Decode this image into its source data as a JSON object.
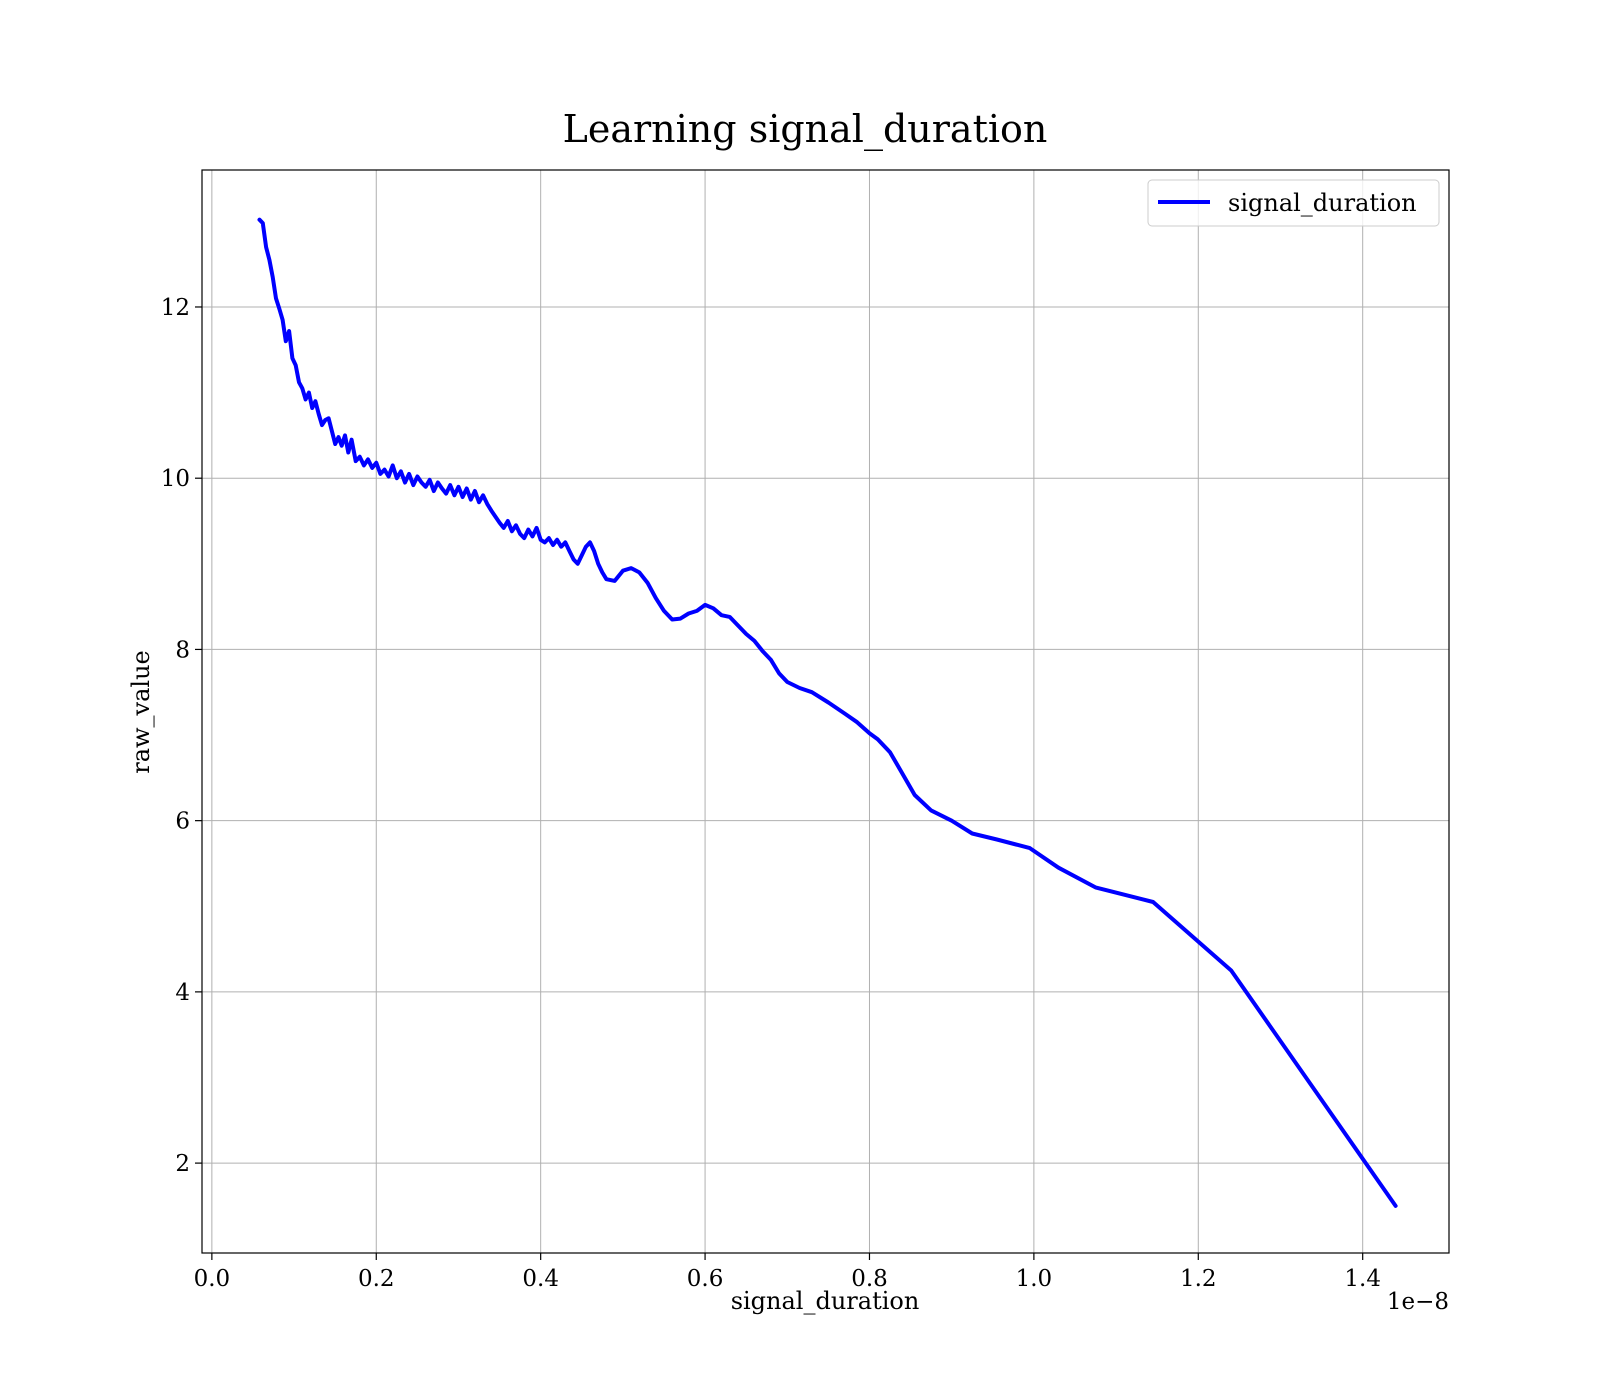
{
  "chart_data": {
    "type": "line",
    "title": "Learning signal_duration",
    "xlabel": "signal_duration",
    "ylabel": "raw_value",
    "x_offset_text": "1e−8",
    "xlim": [
      -0.012,
      1.505
    ],
    "ylim": [
      0.95,
      13.6
    ],
    "x_ticks": [
      0.0,
      0.2,
      0.4,
      0.6,
      0.8,
      1.0,
      1.2,
      1.4
    ],
    "x_tick_labels": [
      "0.0",
      "0.2",
      "0.4",
      "0.6",
      "0.8",
      "1.0",
      "1.2",
      "1.4"
    ],
    "y_ticks": [
      2,
      4,
      6,
      8,
      10,
      12
    ],
    "y_tick_labels": [
      "2",
      "4",
      "6",
      "8",
      "10",
      "12"
    ],
    "grid": true,
    "legend": {
      "position": "top-right",
      "entries": [
        "signal_duration"
      ]
    },
    "colors": {
      "signal_duration": "#0000ff"
    },
    "series": [
      {
        "name": "signal_duration",
        "x": [
          0.058,
          0.062,
          0.066,
          0.07,
          0.074,
          0.078,
          0.082,
          0.086,
          0.09,
          0.094,
          0.098,
          0.102,
          0.106,
          0.11,
          0.114,
          0.118,
          0.122,
          0.126,
          0.13,
          0.134,
          0.138,
          0.142,
          0.146,
          0.15,
          0.154,
          0.158,
          0.162,
          0.166,
          0.17,
          0.175,
          0.18,
          0.185,
          0.19,
          0.195,
          0.2,
          0.205,
          0.21,
          0.215,
          0.22,
          0.225,
          0.23,
          0.235,
          0.24,
          0.245,
          0.25,
          0.255,
          0.26,
          0.265,
          0.27,
          0.275,
          0.28,
          0.285,
          0.29,
          0.295,
          0.3,
          0.305,
          0.31,
          0.315,
          0.32,
          0.325,
          0.33,
          0.335,
          0.34,
          0.345,
          0.35,
          0.355,
          0.36,
          0.365,
          0.37,
          0.375,
          0.38,
          0.385,
          0.39,
          0.395,
          0.4,
          0.405,
          0.41,
          0.415,
          0.42,
          0.425,
          0.43,
          0.435,
          0.44,
          0.445,
          0.45,
          0.455,
          0.46,
          0.465,
          0.47,
          0.475,
          0.48,
          0.49,
          0.5,
          0.51,
          0.52,
          0.53,
          0.54,
          0.55,
          0.56,
          0.57,
          0.58,
          0.59,
          0.6,
          0.61,
          0.62,
          0.63,
          0.64,
          0.65,
          0.66,
          0.67,
          0.68,
          0.69,
          0.7,
          0.715,
          0.73,
          0.75,
          0.77,
          0.785,
          0.8,
          0.81,
          0.825,
          0.84,
          0.855,
          0.875,
          0.9,
          0.925,
          0.955,
          0.995,
          1.03,
          1.075,
          1.145,
          1.24,
          1.44
        ],
        "y": [
          13.02,
          12.98,
          12.7,
          12.55,
          12.35,
          12.1,
          11.98,
          11.85,
          11.6,
          11.72,
          11.4,
          11.32,
          11.12,
          11.05,
          10.92,
          11.0,
          10.82,
          10.9,
          10.75,
          10.62,
          10.68,
          10.7,
          10.55,
          10.4,
          10.48,
          10.38,
          10.5,
          10.3,
          10.45,
          10.2,
          10.25,
          10.15,
          10.22,
          10.12,
          10.18,
          10.05,
          10.1,
          10.02,
          10.15,
          10.0,
          10.08,
          9.95,
          10.05,
          9.92,
          10.02,
          9.95,
          9.9,
          9.98,
          9.85,
          9.95,
          9.88,
          9.82,
          9.92,
          9.8,
          9.9,
          9.78,
          9.88,
          9.75,
          9.85,
          9.72,
          9.8,
          9.7,
          9.62,
          9.55,
          9.48,
          9.42,
          9.5,
          9.38,
          9.45,
          9.35,
          9.3,
          9.4,
          9.32,
          9.42,
          9.28,
          9.25,
          9.3,
          9.22,
          9.28,
          9.2,
          9.25,
          9.15,
          9.05,
          9.0,
          9.1,
          9.2,
          9.25,
          9.15,
          9.0,
          8.9,
          8.82,
          8.8,
          8.92,
          8.95,
          8.9,
          8.78,
          8.6,
          8.45,
          8.35,
          8.36,
          8.42,
          8.45,
          8.52,
          8.48,
          8.4,
          8.38,
          8.28,
          8.18,
          8.1,
          7.98,
          7.88,
          7.72,
          7.62,
          7.55,
          7.5,
          7.38,
          7.25,
          7.15,
          7.02,
          6.95,
          6.8,
          6.55,
          6.3,
          6.12,
          6.0,
          5.85,
          5.78,
          5.68,
          5.45,
          5.22,
          5.05,
          4.25,
          1.5
        ]
      }
    ]
  }
}
